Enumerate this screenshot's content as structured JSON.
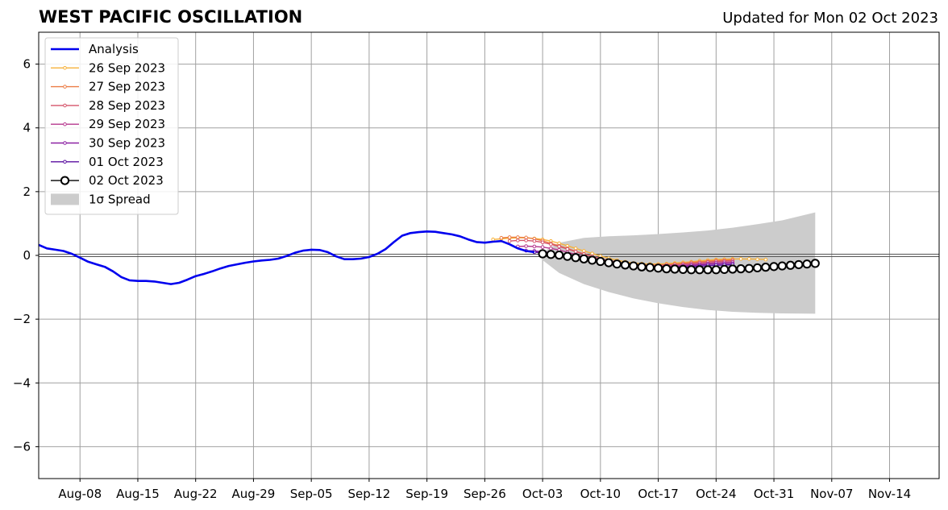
{
  "title": "WEST PACIFIC OSCILLATION",
  "subtitle": "Updated for Mon 02 Oct 2023",
  "chart_data": {
    "type": "line",
    "title": "WEST PACIFIC OSCILLATION",
    "xlabel": "",
    "ylabel": "",
    "xlim": [
      "2023-08-03",
      "2023-11-20"
    ],
    "ylim": [
      -7,
      7
    ],
    "grid": true,
    "legend_position": "top-left",
    "x_ticks": [
      "Aug-08",
      "Aug-15",
      "Aug-22",
      "Aug-29",
      "Sep-05",
      "Sep-12",
      "Sep-19",
      "Sep-26",
      "Oct-03",
      "Oct-10",
      "Oct-17",
      "Oct-24",
      "Oct-31",
      "Nov-07",
      "Nov-14"
    ],
    "y_ticks": [
      6,
      4,
      2,
      0,
      -2,
      -4,
      -6
    ],
    "y_tick_labels": [
      "6",
      "4",
      "2",
      "0",
      "−2",
      "−4",
      "−6"
    ],
    "analysis": {
      "name": "Analysis",
      "color": "#0000ee",
      "x": [
        "2023-08-03",
        "2023-08-04",
        "2023-08-05",
        "2023-08-06",
        "2023-08-07",
        "2023-08-08",
        "2023-08-09",
        "2023-08-10",
        "2023-08-11",
        "2023-08-12",
        "2023-08-13",
        "2023-08-14",
        "2023-08-15",
        "2023-08-16",
        "2023-08-17",
        "2023-08-18",
        "2023-08-19",
        "2023-08-20",
        "2023-08-21",
        "2023-08-22",
        "2023-08-23",
        "2023-08-24",
        "2023-08-25",
        "2023-08-26",
        "2023-08-27",
        "2023-08-28",
        "2023-08-29",
        "2023-08-30",
        "2023-08-31",
        "2023-09-01",
        "2023-09-02",
        "2023-09-03",
        "2023-09-04",
        "2023-09-05",
        "2023-09-06",
        "2023-09-07",
        "2023-09-08",
        "2023-09-09",
        "2023-09-10",
        "2023-09-11",
        "2023-09-12",
        "2023-09-13",
        "2023-09-14",
        "2023-09-15",
        "2023-09-16",
        "2023-09-17",
        "2023-09-18",
        "2023-09-19",
        "2023-09-20",
        "2023-09-21",
        "2023-09-22",
        "2023-09-23",
        "2023-09-24",
        "2023-09-25",
        "2023-09-26",
        "2023-09-27",
        "2023-09-28",
        "2023-09-29",
        "2023-09-30",
        "2023-10-01",
        "2023-10-02"
      ],
      "values": [
        0.33,
        0.22,
        0.18,
        0.14,
        0.05,
        -0.07,
        -0.2,
        -0.28,
        -0.36,
        -0.5,
        -0.68,
        -0.78,
        -0.8,
        -0.8,
        -0.82,
        -0.86,
        -0.9,
        -0.86,
        -0.76,
        -0.65,
        -0.58,
        -0.5,
        -0.41,
        -0.33,
        -0.28,
        -0.23,
        -0.19,
        -0.16,
        -0.14,
        -0.1,
        -0.02,
        0.08,
        0.15,
        0.18,
        0.17,
        0.1,
        -0.03,
        -0.12,
        -0.12,
        -0.1,
        -0.05,
        0.05,
        0.2,
        0.42,
        0.62,
        0.7,
        0.73,
        0.75,
        0.74,
        0.7,
        0.66,
        0.6,
        0.5,
        0.42,
        0.4,
        0.43,
        0.45,
        0.35,
        0.22,
        0.14,
        0.1
      ]
    },
    "forecasts": [
      {
        "name": "26 Sep 2023",
        "color": "#f6b13a",
        "start": "2023-09-27",
        "values": [
          0.5,
          0.52,
          0.54,
          0.55,
          0.55,
          0.53,
          0.5,
          0.45,
          0.38,
          0.3,
          0.22,
          0.14,
          0.06,
          -0.02,
          -0.09,
          -0.15,
          -0.2,
          -0.24,
          -0.26,
          -0.27,
          -0.27,
          -0.26,
          -0.24,
          -0.22,
          -0.2,
          -0.17,
          -0.15,
          -0.13,
          -0.12,
          -0.11,
          -0.11,
          -0.11,
          -0.12,
          -0.13
        ]
      },
      {
        "name": "27 Sep 2023",
        "color": "#ec7d46",
        "start": "2023-09-28",
        "values": [
          0.55,
          0.57,
          0.57,
          0.56,
          0.52,
          0.46,
          0.38,
          0.3,
          0.22,
          0.13,
          0.05,
          -0.03,
          -0.1,
          -0.16,
          -0.21,
          -0.25,
          -0.28,
          -0.3,
          -0.3,
          -0.3,
          -0.29,
          -0.27,
          -0.25,
          -0.22,
          -0.2,
          -0.18,
          -0.16,
          -0.15,
          -0.14
        ]
      },
      {
        "name": "28 Sep 2023",
        "color": "#d5536a",
        "start": "2023-09-29",
        "values": [
          0.45,
          0.47,
          0.47,
          0.45,
          0.41,
          0.35,
          0.28,
          0.2,
          0.12,
          0.04,
          -0.03,
          -0.1,
          -0.16,
          -0.21,
          -0.25,
          -0.28,
          -0.3,
          -0.31,
          -0.31,
          -0.3,
          -0.29,
          -0.27,
          -0.25,
          -0.23,
          -0.21,
          -0.19,
          -0.18,
          -0.17
        ]
      },
      {
        "name": "29 Sep 2023",
        "color": "#b6378e",
        "start": "2023-09-30",
        "values": [
          0.28,
          0.29,
          0.28,
          0.26,
          0.22,
          0.17,
          0.1,
          0.03,
          -0.04,
          -0.11,
          -0.17,
          -0.22,
          -0.27,
          -0.31,
          -0.33,
          -0.35,
          -0.35,
          -0.35,
          -0.34,
          -0.33,
          -0.31,
          -0.29,
          -0.27,
          -0.25,
          -0.23,
          -0.22,
          -0.21
        ]
      },
      {
        "name": "30 Sep 2023",
        "color": "#8c21a3",
        "start": "2023-10-01",
        "values": [
          0.15,
          0.14,
          0.12,
          0.09,
          0.05,
          0,
          -0.05,
          -0.11,
          -0.16,
          -0.21,
          -0.26,
          -0.3,
          -0.33,
          -0.35,
          -0.36,
          -0.37,
          -0.37,
          -0.36,
          -0.35,
          -0.34,
          -0.32,
          -0.3,
          -0.28,
          -0.27,
          -0.26,
          -0.25
        ]
      },
      {
        "name": "01 Oct 2023",
        "color": "#5a0ea0",
        "start": "2023-10-02",
        "values": [
          0.1,
          0.08,
          0.05,
          0.01,
          -0.03,
          -0.08,
          -0.13,
          -0.18,
          -0.23,
          -0.27,
          -0.31,
          -0.34,
          -0.36,
          -0.38,
          -0.39,
          -0.39,
          -0.39,
          -0.38,
          -0.37,
          -0.36,
          -0.34,
          -0.32,
          -0.31,
          -0.3,
          -0.29
        ]
      },
      {
        "name": "02 Oct 2023",
        "color": "#000000",
        "start": "2023-10-03",
        "values": [
          0.05,
          0.03,
          0.01,
          -0.03,
          -0.07,
          -0.11,
          -0.15,
          -0.19,
          -0.23,
          -0.27,
          -0.3,
          -0.33,
          -0.36,
          -0.38,
          -0.4,
          -0.42,
          -0.43,
          -0.44,
          -0.45,
          -0.45,
          -0.45,
          -0.45,
          -0.44,
          -0.43,
          -0.42,
          -0.41,
          -0.39,
          -0.37,
          -0.35,
          -0.33,
          -0.31,
          -0.29,
          -0.27,
          -0.25
        ]
      }
    ],
    "spread": {
      "name": "1σ Spread",
      "color": "#cccccc",
      "x": [
        "2023-10-03",
        "2023-10-05",
        "2023-10-08",
        "2023-10-11",
        "2023-10-14",
        "2023-10-17",
        "2023-10-20",
        "2023-10-23",
        "2023-10-26",
        "2023-10-29",
        "2023-11-01",
        "2023-11-05"
      ],
      "upper": [
        0.1,
        0.4,
        0.55,
        0.6,
        0.63,
        0.67,
        0.72,
        0.78,
        0.87,
        0.98,
        1.1,
        1.35
      ],
      "lower": [
        -0.15,
        -0.55,
        -0.9,
        -1.15,
        -1.35,
        -1.5,
        -1.62,
        -1.71,
        -1.77,
        -1.8,
        -1.82,
        -1.83
      ]
    }
  }
}
